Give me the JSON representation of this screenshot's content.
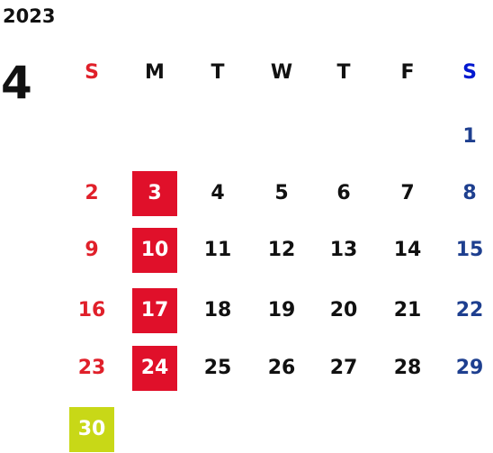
{
  "year": "2023",
  "month": "4",
  "colors": {
    "sunday": "#e0202a",
    "saturday": "#1e3f8f",
    "saturday_header": "#0018d0",
    "weekday": "#111111",
    "highlight_red": "#e0102a",
    "highlight_yellow": "#c8d817"
  },
  "weekdays": [
    {
      "label": "S",
      "type": "sunday-header"
    },
    {
      "label": "M",
      "type": "weekday"
    },
    {
      "label": "T",
      "type": "weekday"
    },
    {
      "label": "W",
      "type": "weekday"
    },
    {
      "label": "T",
      "type": "weekday"
    },
    {
      "label": "F",
      "type": "weekday"
    },
    {
      "label": "S",
      "type": "saturday-header"
    }
  ],
  "days": [
    {
      "label": "1",
      "col": 6,
      "row": 0,
      "type": "saturday"
    },
    {
      "label": "2",
      "col": 0,
      "row": 1,
      "type": "sunday"
    },
    {
      "label": "3",
      "col": 1,
      "row": 1,
      "type": "weekday",
      "highlight": "red"
    },
    {
      "label": "4",
      "col": 2,
      "row": 1,
      "type": "weekday"
    },
    {
      "label": "5",
      "col": 3,
      "row": 1,
      "type": "weekday"
    },
    {
      "label": "6",
      "col": 4,
      "row": 1,
      "type": "weekday"
    },
    {
      "label": "7",
      "col": 5,
      "row": 1,
      "type": "weekday"
    },
    {
      "label": "8",
      "col": 6,
      "row": 1,
      "type": "saturday"
    },
    {
      "label": "9",
      "col": 0,
      "row": 2,
      "type": "sunday"
    },
    {
      "label": "10",
      "col": 1,
      "row": 2,
      "type": "weekday",
      "highlight": "red"
    },
    {
      "label": "11",
      "col": 2,
      "row": 2,
      "type": "weekday"
    },
    {
      "label": "12",
      "col": 3,
      "row": 2,
      "type": "weekday"
    },
    {
      "label": "13",
      "col": 4,
      "row": 2,
      "type": "weekday"
    },
    {
      "label": "14",
      "col": 5,
      "row": 2,
      "type": "weekday"
    },
    {
      "label": "15",
      "col": 6,
      "row": 2,
      "type": "saturday"
    },
    {
      "label": "16",
      "col": 0,
      "row": 3,
      "type": "sunday"
    },
    {
      "label": "17",
      "col": 1,
      "row": 3,
      "type": "weekday",
      "highlight": "red"
    },
    {
      "label": "18",
      "col": 2,
      "row": 3,
      "type": "weekday"
    },
    {
      "label": "19",
      "col": 3,
      "row": 3,
      "type": "weekday"
    },
    {
      "label": "20",
      "col": 4,
      "row": 3,
      "type": "weekday"
    },
    {
      "label": "21",
      "col": 5,
      "row": 3,
      "type": "weekday"
    },
    {
      "label": "22",
      "col": 6,
      "row": 3,
      "type": "saturday"
    },
    {
      "label": "23",
      "col": 0,
      "row": 4,
      "type": "sunday"
    },
    {
      "label": "24",
      "col": 1,
      "row": 4,
      "type": "weekday",
      "highlight": "red"
    },
    {
      "label": "25",
      "col": 2,
      "row": 4,
      "type": "weekday"
    },
    {
      "label": "26",
      "col": 3,
      "row": 4,
      "type": "weekday"
    },
    {
      "label": "27",
      "col": 4,
      "row": 4,
      "type": "weekday"
    },
    {
      "label": "28",
      "col": 5,
      "row": 4,
      "type": "weekday"
    },
    {
      "label": "29",
      "col": 6,
      "row": 4,
      "type": "saturday"
    },
    {
      "label": "30",
      "col": 0,
      "row": 5,
      "type": "sunday",
      "highlight": "yellow"
    }
  ]
}
